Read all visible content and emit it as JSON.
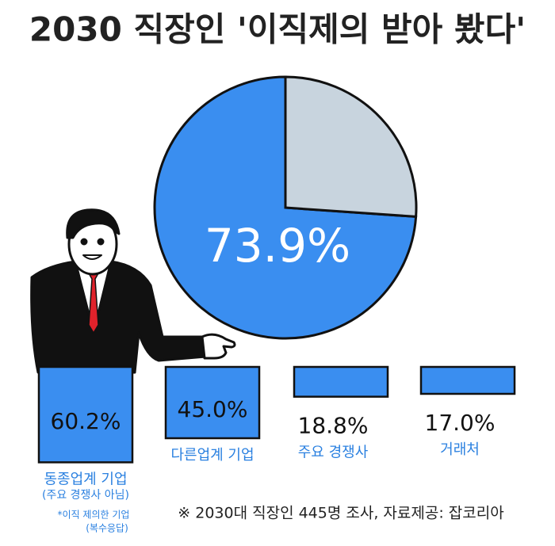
{
  "chart_data": [
    {
      "type": "pie",
      "title": "2030 직장인 '이직제의 받아 봤다'",
      "values": [
        73.9,
        26.1
      ],
      "value_labels": [
        "73.9%",
        null
      ],
      "colors": [
        "#3a8ef0",
        "#c8d4de"
      ]
    },
    {
      "type": "bar",
      "categories": [
        "동종업계 기업",
        "다른업계 기업",
        "주요 경쟁사",
        "거래처"
      ],
      "values": [
        60.2,
        45.0,
        18.8,
        17.0
      ],
      "value_labels": [
        "60.2%",
        "45.0%",
        "18.8%",
        "17.0%"
      ],
      "color": "#3a8ef0",
      "notes": [
        "(주요 경쟁사 아님)",
        "*이직 제의한 기업",
        "(복수응답)"
      ],
      "source": "※ 2030대 직장인 445명 조사, 자료제공: 잡코리아"
    }
  ]
}
